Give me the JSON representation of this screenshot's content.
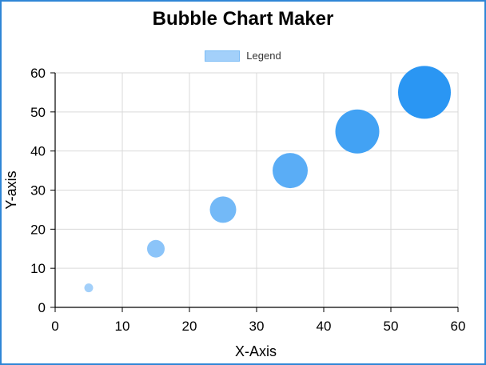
{
  "chart_data": {
    "type": "bubble",
    "title": "Bubble Chart Maker",
    "legend": {
      "entries": [
        "Legend"
      ],
      "placement": "top-center"
    },
    "xlabel": "X-Axis",
    "ylabel": "Y-axis",
    "xlim": [
      0,
      60
    ],
    "ylim": [
      0,
      60
    ],
    "x_ticks": [
      0,
      10,
      20,
      30,
      40,
      50,
      60
    ],
    "y_ticks": [
      0,
      10,
      20,
      30,
      40,
      50,
      60
    ],
    "grid": true,
    "series": [
      {
        "name": "Legend",
        "points": [
          {
            "x": 5,
            "y": 5,
            "r": 5
          },
          {
            "x": 15,
            "y": 15,
            "r": 10
          },
          {
            "x": 25,
            "y": 25,
            "r": 15
          },
          {
            "x": 35,
            "y": 35,
            "r": 20
          },
          {
            "x": 45,
            "y": 45,
            "r": 25
          },
          {
            "x": 55,
            "y": 55,
            "r": 30
          }
        ]
      }
    ]
  },
  "colors": {
    "frame": "#2f86d6",
    "bubble_light": "#a3d0fa",
    "bubble_dark": "#2a96f3",
    "grid": "#d9d9d9",
    "axis": "#000000"
  }
}
